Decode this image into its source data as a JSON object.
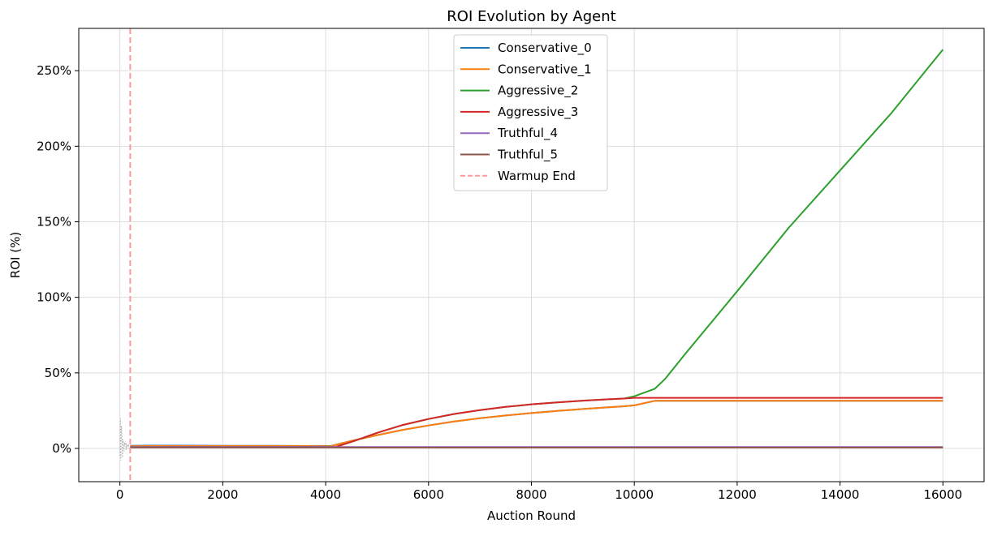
{
  "chart_data": {
    "type": "line",
    "title": "ROI Evolution by Agent",
    "xlabel": "Auction Round",
    "ylabel": "ROI (%)",
    "xlim": [
      -800,
      16800
    ],
    "ylim": [
      -22,
      278
    ],
    "xticks": [
      0,
      2000,
      4000,
      6000,
      8000,
      10000,
      12000,
      14000,
      16000
    ],
    "xtick_labels": [
      "0",
      "2000",
      "4000",
      "6000",
      "8000",
      "10000",
      "12000",
      "14000",
      "16000"
    ],
    "yticks": [
      0,
      50,
      100,
      150,
      200,
      250
    ],
    "ytick_labels": [
      "0%",
      "50%",
      "100%",
      "150%",
      "200%",
      "250%"
    ],
    "grid": true,
    "legend_position": "top-center",
    "series": [
      {
        "name": "Conservative_0",
        "color": "#1f77b4",
        "x": [
          200,
          600,
          1000,
          2000,
          3000,
          4000,
          4100,
          4500,
          5000,
          5500,
          6000,
          6500,
          7000,
          7500,
          8000,
          8500,
          9000,
          9500,
          9800,
          10000,
          10400,
          11000,
          12000,
          14000,
          16000
        ],
        "y": [
          1.8,
          1.9,
          1.9,
          1.8,
          1.7,
          1.6,
          1.6,
          5.0,
          8.8,
          12.3,
          15.2,
          17.8,
          20.0,
          21.8,
          23.4,
          24.8,
          26.1,
          27.2,
          27.9,
          28.5,
          31.5,
          31.5,
          31.5,
          31.5,
          31.5
        ]
      },
      {
        "name": "Conservative_1",
        "color": "#ff7f0e",
        "x": [
          200,
          600,
          1000,
          2000,
          3000,
          4000,
          4100,
          4500,
          5000,
          5500,
          6000,
          6500,
          7000,
          7500,
          8000,
          8500,
          9000,
          9500,
          9800,
          10000,
          10400,
          11000,
          12000,
          14000,
          16000
        ],
        "y": [
          1.5,
          1.6,
          1.6,
          1.6,
          1.6,
          1.5,
          1.5,
          5.0,
          8.8,
          12.3,
          15.2,
          17.8,
          20.0,
          21.8,
          23.4,
          24.8,
          26.1,
          27.2,
          27.9,
          28.5,
          31.5,
          31.5,
          31.5,
          31.5,
          31.5
        ]
      },
      {
        "name": "Aggressive_2",
        "color": "#2ca02c",
        "x": [
          200,
          1000,
          2000,
          3000,
          4000,
          4200,
          4600,
          5000,
          5500,
          6000,
          6500,
          7000,
          7500,
          8000,
          8500,
          9000,
          9500,
          9800,
          10000,
          10400,
          10600,
          11000,
          12000,
          13000,
          14000,
          15000,
          16000
        ],
        "y": [
          0.8,
          0.9,
          0.9,
          0.9,
          0.9,
          1.0,
          5.5,
          10.3,
          15.5,
          19.5,
          22.8,
          25.4,
          27.5,
          29.2,
          30.5,
          31.6,
          32.5,
          33.0,
          34.5,
          39.5,
          46.0,
          63.0,
          104.0,
          146.0,
          184.0,
          222.0,
          264.0
        ]
      },
      {
        "name": "Aggressive_3",
        "color": "#d62728",
        "x": [
          200,
          1000,
          2000,
          3000,
          4000,
          4200,
          4600,
          5000,
          5500,
          6000,
          6500,
          7000,
          7500,
          8000,
          8500,
          9000,
          9500,
          9800,
          10000,
          10400,
          11000,
          12000,
          14000,
          16000
        ],
        "y": [
          0.8,
          0.9,
          0.9,
          0.9,
          0.9,
          1.0,
          5.5,
          10.3,
          15.5,
          19.5,
          22.8,
          25.4,
          27.5,
          29.2,
          30.5,
          31.6,
          32.5,
          33.0,
          33.5,
          33.5,
          33.5,
          33.5,
          33.5,
          33.5
        ]
      },
      {
        "name": "Truthful_4",
        "color": "#9467bd",
        "x": [
          200,
          1000,
          4000,
          8000,
          12000,
          16000
        ],
        "y": [
          0.9,
          0.9,
          0.9,
          0.9,
          0.9,
          0.9
        ]
      },
      {
        "name": "Truthful_5",
        "color": "#8c564b",
        "x": [
          200,
          1000,
          4000,
          8000,
          12000,
          16000
        ],
        "y": [
          0.6,
          0.6,
          0.6,
          0.6,
          0.6,
          0.6
        ]
      }
    ],
    "early_noise": {
      "color": "#999999",
      "x": [
        0,
        10,
        20,
        30,
        40,
        50,
        60,
        70,
        80,
        90,
        100,
        110,
        120,
        130,
        140,
        150,
        160,
        170,
        180,
        190,
        200
      ],
      "y": [
        -5,
        20,
        -8,
        15,
        10,
        -6,
        6,
        3,
        -2,
        4,
        2,
        5,
        -1,
        3,
        1,
        2,
        0,
        2,
        1,
        1,
        1
      ]
    },
    "vline": {
      "name": "Warmup End",
      "x": 200,
      "color": "#ff9999",
      "style": "dashed"
    }
  }
}
